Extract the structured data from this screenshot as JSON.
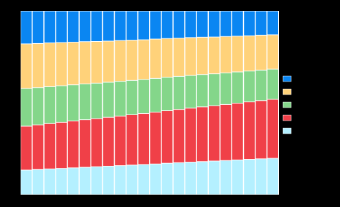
{
  "chart_data": {
    "type": "bar",
    "stacked": true,
    "legend": "right",
    "tick_labels": false,
    "categories": [
      null,
      null,
      null,
      null,
      null,
      null,
      null,
      null,
      null,
      null,
      null,
      null,
      null,
      null,
      null,
      null,
      null,
      null,
      null,
      null,
      null,
      null
    ],
    "ylim": [
      0,
      100
    ],
    "series": [
      {
        "color": "#b4f0ff",
        "values": [
          13.4,
          13.7,
          14.0,
          14.3,
          14.6,
          14.9,
          15.2,
          15.5,
          15.8,
          16.1,
          16.4,
          16.7,
          17.1,
          17.4,
          17.7,
          18.0,
          18.3,
          18.6,
          18.9,
          19.2,
          19.5,
          19.8
        ]
      },
      {
        "color": "#f04048",
        "values": [
          23.9,
          24.3,
          24.7,
          25.1,
          25.5,
          25.9,
          26.2,
          26.6,
          27.0,
          27.4,
          27.8,
          28.2,
          28.6,
          29.0,
          29.4,
          29.8,
          30.1,
          30.5,
          30.9,
          31.3,
          31.7,
          32.1
        ]
      },
      {
        "color": "#84d68a",
        "values": [
          20.5,
          20.3,
          20.1,
          19.9,
          19.7,
          19.5,
          19.3,
          19.1,
          18.9,
          18.7,
          18.5,
          18.4,
          18.2,
          18.0,
          17.8,
          17.6,
          17.4,
          17.2,
          17.0,
          16.8,
          16.6,
          16.4
        ]
      },
      {
        "color": "#ffd27a",
        "values": [
          24.3,
          24.0,
          23.8,
          23.5,
          23.2,
          23.0,
          22.7,
          22.4,
          22.2,
          21.9,
          21.6,
          21.4,
          21.1,
          20.8,
          20.6,
          20.3,
          20.0,
          19.8,
          19.5,
          19.2,
          19.0,
          18.7
        ]
      },
      {
        "color": "#0a86f2",
        "values": [
          17.9,
          17.7,
          17.4,
          17.2,
          17.0,
          16.7,
          16.6,
          16.4,
          16.1,
          15.9,
          15.7,
          15.3,
          15.0,
          14.8,
          14.5,
          14.3,
          14.2,
          13.9,
          13.7,
          13.5,
          13.2,
          13.0
        ]
      }
    ]
  }
}
